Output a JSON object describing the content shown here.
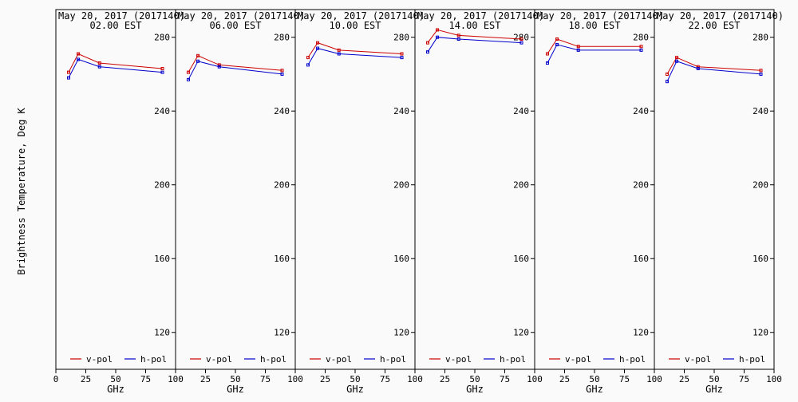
{
  "figure": {
    "ylabel": "Brightness Temperature, Deg K"
  },
  "chart_data": [
    {
      "type": "line",
      "title": "May 20, 2017 (2017140)",
      "subtitle": "02.00 EST",
      "xlabel": "GHz",
      "xlim": [
        0,
        100
      ],
      "ylim": [
        100,
        295
      ],
      "x_ticks": [
        0,
        25,
        50,
        75,
        100
      ],
      "y_ticks": [
        120,
        160,
        200,
        240,
        280
      ],
      "legend_position": "bottom",
      "series": [
        {
          "name": "v-pol",
          "color": "#cc0000",
          "x": [
            10.65,
            18.7,
            36.5,
            89.0
          ],
          "values": [
            261,
            271,
            266,
            263
          ]
        },
        {
          "name": "h-pol",
          "color": "#0000cc",
          "x": [
            10.65,
            18.7,
            36.5,
            89.0
          ],
          "values": [
            258,
            268,
            264,
            261
          ]
        }
      ]
    },
    {
      "type": "line",
      "title": "May 20, 2017 (2017140)",
      "subtitle": "06.00 EST",
      "xlabel": "GHz",
      "xlim": [
        0,
        100
      ],
      "ylim": [
        100,
        295
      ],
      "x_ticks": [
        0,
        25,
        50,
        75,
        100
      ],
      "y_ticks": [
        120,
        160,
        200,
        240,
        280
      ],
      "legend_position": "bottom",
      "series": [
        {
          "name": "v-pol",
          "color": "#cc0000",
          "x": [
            10.65,
            18.7,
            36.5,
            89.0
          ],
          "values": [
            261,
            270,
            265,
            262
          ]
        },
        {
          "name": "h-pol",
          "color": "#0000cc",
          "x": [
            10.65,
            18.7,
            36.5,
            89.0
          ],
          "values": [
            257,
            267,
            264,
            260
          ]
        }
      ]
    },
    {
      "type": "line",
      "title": "May 20, 2017 (2017140)",
      "subtitle": "10.00 EST",
      "xlabel": "GHz",
      "xlim": [
        0,
        100
      ],
      "ylim": [
        100,
        295
      ],
      "x_ticks": [
        0,
        25,
        50,
        75,
        100
      ],
      "y_ticks": [
        120,
        160,
        200,
        240,
        280
      ],
      "legend_position": "bottom",
      "series": [
        {
          "name": "v-pol",
          "color": "#cc0000",
          "x": [
            10.65,
            18.7,
            36.5,
            89.0
          ],
          "values": [
            269,
            277,
            273,
            271
          ]
        },
        {
          "name": "h-pol",
          "color": "#0000cc",
          "x": [
            10.65,
            18.7,
            36.5,
            89.0
          ],
          "values": [
            265,
            274,
            271,
            269
          ]
        }
      ]
    },
    {
      "type": "line",
      "title": "May 20, 2017 (2017140)",
      "subtitle": "14.00 EST",
      "xlabel": "GHz",
      "xlim": [
        0,
        100
      ],
      "ylim": [
        100,
        295
      ],
      "x_ticks": [
        0,
        25,
        50,
        75,
        100
      ],
      "y_ticks": [
        120,
        160,
        200,
        240,
        280
      ],
      "legend_position": "bottom",
      "series": [
        {
          "name": "v-pol",
          "color": "#cc0000",
          "x": [
            10.65,
            18.7,
            36.5,
            89.0
          ],
          "values": [
            277,
            284,
            281,
            279
          ]
        },
        {
          "name": "h-pol",
          "color": "#0000cc",
          "x": [
            10.65,
            18.7,
            36.5,
            89.0
          ],
          "values": [
            272,
            280,
            279,
            277
          ]
        }
      ]
    },
    {
      "type": "line",
      "title": "May 20, 2017 (2017140)",
      "subtitle": "18.00 EST",
      "xlabel": "GHz",
      "xlim": [
        0,
        100
      ],
      "ylim": [
        100,
        295
      ],
      "x_ticks": [
        0,
        25,
        50,
        75,
        100
      ],
      "y_ticks": [
        120,
        160,
        200,
        240,
        280
      ],
      "legend_position": "bottom",
      "series": [
        {
          "name": "v-pol",
          "color": "#cc0000",
          "x": [
            10.65,
            18.7,
            36.5,
            89.0
          ],
          "values": [
            271,
            279,
            275,
            275
          ]
        },
        {
          "name": "h-pol",
          "color": "#0000cc",
          "x": [
            10.65,
            18.7,
            36.5,
            89.0
          ],
          "values": [
            266,
            276,
            273,
            273
          ]
        }
      ]
    },
    {
      "type": "line",
      "title": "May 20, 2017 (2017140)",
      "subtitle": "22.00 EST",
      "xlabel": "GHz",
      "xlim": [
        0,
        100
      ],
      "ylim": [
        100,
        295
      ],
      "x_ticks": [
        0,
        25,
        50,
        75,
        100
      ],
      "y_ticks": [
        120,
        160,
        200,
        240,
        280
      ],
      "legend_position": "bottom",
      "series": [
        {
          "name": "v-pol",
          "color": "#cc0000",
          "x": [
            10.65,
            18.7,
            36.5,
            89.0
          ],
          "values": [
            260,
            269,
            264,
            262
          ]
        },
        {
          "name": "h-pol",
          "color": "#0000cc",
          "x": [
            10.65,
            18.7,
            36.5,
            89.0
          ],
          "values": [
            256,
            267,
            263,
            260
          ]
        }
      ]
    }
  ]
}
